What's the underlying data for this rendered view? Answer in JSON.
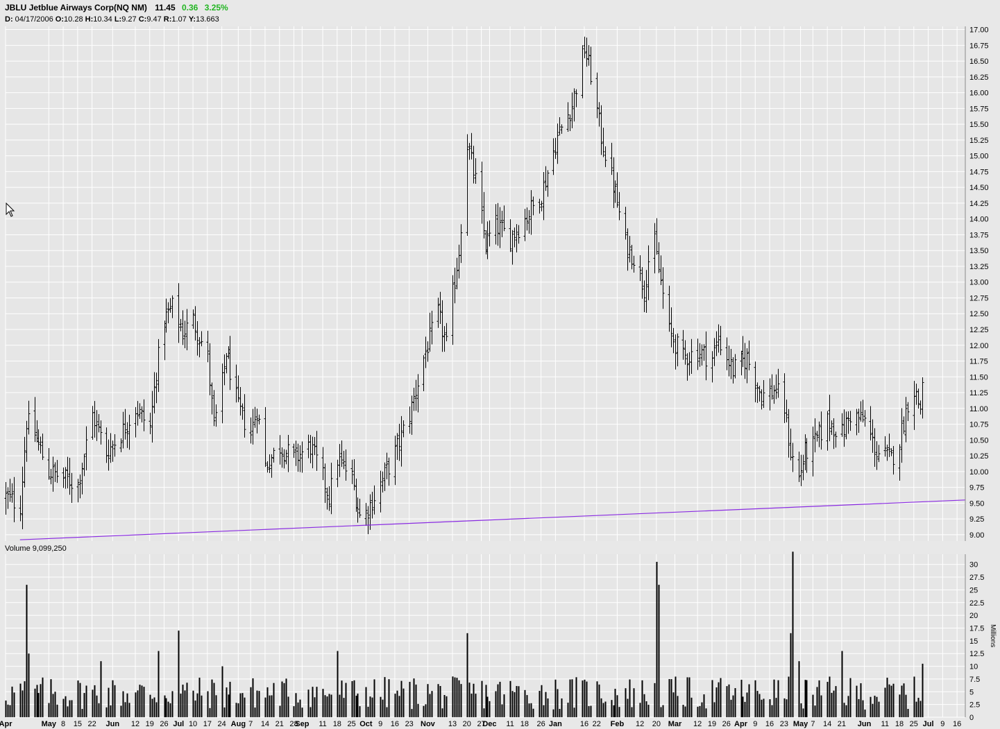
{
  "header": {
    "ticker": "JBLU",
    "name": "Jetblue Airways Corp(NQ NM)",
    "last": "11.45",
    "change": "0.36",
    "change_pct": "3.25%",
    "change_color": "#22b522",
    "detail": {
      "date_label": "D:",
      "date": "04/17/2006",
      "open_label": "O:",
      "open": "10.28",
      "high_label": "H:",
      "high": "10.34",
      "low_label": "L:",
      "low": "9.27",
      "close_label": "C:",
      "close": "9.47",
      "range_label": "R:",
      "range": "1.07",
      "y_label": "Y:",
      "y": "13.663"
    }
  },
  "volume_label": "Volume 9,099,250",
  "volume_axis_unit": "Millions",
  "chart_data": [
    {
      "type": "ohlc",
      "y_ticks": [
        "9.00",
        "9.25",
        "9.50",
        "9.75",
        "10.00",
        "10.25",
        "10.50",
        "10.75",
        "11.00",
        "11.25",
        "11.50",
        "11.75",
        "12.00",
        "12.25",
        "12.50",
        "12.75",
        "13.00",
        "13.25",
        "13.50",
        "13.75",
        "14.00",
        "14.25",
        "14.50",
        "14.75",
        "15.00",
        "15.25",
        "15.50",
        "15.75",
        "16.00",
        "16.25",
        "16.50",
        "16.75",
        "17.00"
      ],
      "ylim": [
        8.9,
        17.05
      ],
      "x_range": [
        "2006-04-10",
        "2007-07-20"
      ],
      "x_tick_labels": [
        {
          "date": "2006-04-10",
          "label": "Apr"
        },
        {
          "date": "2006-05-01",
          "label": "May"
        },
        {
          "date": "2006-05-08",
          "label": "8"
        },
        {
          "date": "2006-05-15",
          "label": "15"
        },
        {
          "date": "2006-05-22",
          "label": "22"
        },
        {
          "date": "2006-06-01",
          "label": "Jun"
        },
        {
          "date": "2006-06-12",
          "label": "12"
        },
        {
          "date": "2006-06-19",
          "label": "19"
        },
        {
          "date": "2006-06-26",
          "label": "26"
        },
        {
          "date": "2006-07-03",
          "label": "Jul"
        },
        {
          "date": "2006-07-10",
          "label": "10"
        },
        {
          "date": "2006-07-17",
          "label": "17"
        },
        {
          "date": "2006-07-24",
          "label": "24"
        },
        {
          "date": "2006-08-01",
          "label": "Aug"
        },
        {
          "date": "2006-08-07",
          "label": "7"
        },
        {
          "date": "2006-08-14",
          "label": "14"
        },
        {
          "date": "2006-08-21",
          "label": "21"
        },
        {
          "date": "2006-08-28",
          "label": "28"
        },
        {
          "date": "2006-09-01",
          "label": "Sep"
        },
        {
          "date": "2006-09-11",
          "label": "11"
        },
        {
          "date": "2006-09-18",
          "label": "18"
        },
        {
          "date": "2006-09-25",
          "label": "25"
        },
        {
          "date": "2006-10-02",
          "label": "Oct"
        },
        {
          "date": "2006-10-09",
          "label": "9"
        },
        {
          "date": "2006-10-16",
          "label": "16"
        },
        {
          "date": "2006-10-23",
          "label": "23"
        },
        {
          "date": "2006-11-01",
          "label": "Nov"
        },
        {
          "date": "2006-11-13",
          "label": "13"
        },
        {
          "date": "2006-11-20",
          "label": "20"
        },
        {
          "date": "2006-11-27",
          "label": "27"
        },
        {
          "date": "2006-12-01",
          "label": "Dec"
        },
        {
          "date": "2006-12-11",
          "label": "11"
        },
        {
          "date": "2006-12-18",
          "label": "18"
        },
        {
          "date": "2006-12-26",
          "label": "26"
        },
        {
          "date": "2007-01-02",
          "label": "Jan"
        },
        {
          "date": "2007-01-16",
          "label": "16"
        },
        {
          "date": "2007-01-22",
          "label": "22"
        },
        {
          "date": "2007-02-01",
          "label": "Feb"
        },
        {
          "date": "2007-02-12",
          "label": "12"
        },
        {
          "date": "2007-02-20",
          "label": "20"
        },
        {
          "date": "2007-03-01",
          "label": "Mar"
        },
        {
          "date": "2007-03-12",
          "label": "12"
        },
        {
          "date": "2007-03-19",
          "label": "19"
        },
        {
          "date": "2007-03-26",
          "label": "26"
        },
        {
          "date": "2007-04-02",
          "label": "Apr"
        },
        {
          "date": "2007-04-09",
          "label": "9"
        },
        {
          "date": "2007-04-16",
          "label": "16"
        },
        {
          "date": "2007-04-23",
          "label": "23"
        },
        {
          "date": "2007-05-01",
          "label": "May"
        },
        {
          "date": "2007-05-07",
          "label": "7"
        },
        {
          "date": "2007-05-14",
          "label": "14"
        },
        {
          "date": "2007-05-21",
          "label": "21"
        },
        {
          "date": "2007-06-01",
          "label": "Jun"
        },
        {
          "date": "2007-06-11",
          "label": "11"
        },
        {
          "date": "2007-06-18",
          "label": "18"
        },
        {
          "date": "2007-06-25",
          "label": "25"
        },
        {
          "date": "2007-07-02",
          "label": "Jul"
        },
        {
          "date": "2007-07-09",
          "label": "9"
        },
        {
          "date": "2007-07-16",
          "label": "16"
        }
      ],
      "price_anchors": [
        {
          "date": "2006-04-10",
          "close": 9.6
        },
        {
          "date": "2006-04-17",
          "close": 9.47
        },
        {
          "date": "2006-04-20",
          "close": 10.8
        },
        {
          "date": "2006-04-24",
          "close": 10.6
        },
        {
          "date": "2006-05-01",
          "close": 10.0
        },
        {
          "date": "2006-05-08",
          "close": 9.9
        },
        {
          "date": "2006-05-15",
          "close": 9.8
        },
        {
          "date": "2006-05-22",
          "close": 10.9
        },
        {
          "date": "2006-05-29",
          "close": 10.3
        },
        {
          "date": "2006-06-05",
          "close": 10.6
        },
        {
          "date": "2006-06-12",
          "close": 11.0
        },
        {
          "date": "2006-06-19",
          "close": 10.7
        },
        {
          "date": "2006-06-22",
          "close": 11.6
        },
        {
          "date": "2006-06-26",
          "close": 12.4
        },
        {
          "date": "2006-06-30",
          "close": 12.6
        },
        {
          "date": "2006-07-05",
          "close": 12.2
        },
        {
          "date": "2006-07-10",
          "close": 12.4
        },
        {
          "date": "2006-07-17",
          "close": 11.8
        },
        {
          "date": "2006-07-20",
          "close": 10.7
        },
        {
          "date": "2006-07-24",
          "close": 11.4
        },
        {
          "date": "2006-07-26",
          "close": 11.9
        },
        {
          "date": "2006-08-01",
          "close": 11.0
        },
        {
          "date": "2006-08-07",
          "close": 10.6
        },
        {
          "date": "2006-08-10",
          "close": 11.0
        },
        {
          "date": "2006-08-14",
          "close": 10.1
        },
        {
          "date": "2006-08-21",
          "close": 10.4
        },
        {
          "date": "2006-08-28",
          "close": 10.2
        },
        {
          "date": "2006-09-05",
          "close": 10.4
        },
        {
          "date": "2006-09-11",
          "close": 9.9
        },
        {
          "date": "2006-09-14",
          "close": 9.6
        },
        {
          "date": "2006-09-18",
          "close": 10.2
        },
        {
          "date": "2006-09-25",
          "close": 9.9
        },
        {
          "date": "2006-09-29",
          "close": 9.3
        },
        {
          "date": "2006-10-02",
          "close": 9.35
        },
        {
          "date": "2006-10-09",
          "close": 9.8
        },
        {
          "date": "2006-10-16",
          "close": 10.3
        },
        {
          "date": "2006-10-23",
          "close": 10.9
        },
        {
          "date": "2006-10-30",
          "close": 11.8
        },
        {
          "date": "2006-11-06",
          "close": 12.5
        },
        {
          "date": "2006-11-10",
          "close": 12.0
        },
        {
          "date": "2006-11-13",
          "close": 12.8
        },
        {
          "date": "2006-11-16",
          "close": 13.5
        },
        {
          "date": "2006-11-20",
          "close": 15.2
        },
        {
          "date": "2006-11-24",
          "close": 14.6
        },
        {
          "date": "2006-11-29",
          "close": 13.6
        },
        {
          "date": "2006-12-04",
          "close": 13.9
        },
        {
          "date": "2006-12-11",
          "close": 13.7
        },
        {
          "date": "2006-12-18",
          "close": 14.0
        },
        {
          "date": "2006-12-26",
          "close": 14.4
        },
        {
          "date": "2007-01-03",
          "close": 15.3
        },
        {
          "date": "2007-01-10",
          "close": 15.8
        },
        {
          "date": "2007-01-16",
          "close": 16.7
        },
        {
          "date": "2007-01-19",
          "close": 16.3
        },
        {
          "date": "2007-01-24",
          "close": 15.3
        },
        {
          "date": "2007-01-31",
          "close": 14.4
        },
        {
          "date": "2007-02-05",
          "close": 13.6
        },
        {
          "date": "2007-02-09",
          "close": 13.4
        },
        {
          "date": "2007-02-14",
          "close": 12.9
        },
        {
          "date": "2007-02-18",
          "close": 13.8
        },
        {
          "date": "2007-02-22",
          "close": 13.0
        },
        {
          "date": "2007-02-26",
          "close": 12.2
        },
        {
          "date": "2007-03-05",
          "close": 11.8
        },
        {
          "date": "2007-03-12",
          "close": 11.9
        },
        {
          "date": "2007-03-19",
          "close": 11.8
        },
        {
          "date": "2007-03-22",
          "close": 12.1
        },
        {
          "date": "2007-03-29",
          "close": 11.6
        },
        {
          "date": "2007-04-05",
          "close": 11.8
        },
        {
          "date": "2007-04-12",
          "close": 11.2
        },
        {
          "date": "2007-04-19",
          "close": 11.3
        },
        {
          "date": "2007-04-23",
          "close": 11.0
        },
        {
          "date": "2007-04-26",
          "close": 10.3
        },
        {
          "date": "2007-04-30",
          "close": 9.9
        },
        {
          "date": "2007-05-03",
          "close": 10.3
        },
        {
          "date": "2007-05-07",
          "close": 10.4
        },
        {
          "date": "2007-05-14",
          "close": 10.8
        },
        {
          "date": "2007-05-21",
          "close": 10.6
        },
        {
          "date": "2007-05-25",
          "close": 10.9
        },
        {
          "date": "2007-06-01",
          "close": 10.8
        },
        {
          "date": "2007-06-07",
          "close": 10.3
        },
        {
          "date": "2007-06-14",
          "close": 10.2
        },
        {
          "date": "2007-06-18",
          "close": 10.5
        },
        {
          "date": "2007-06-22",
          "close": 11.1
        },
        {
          "date": "2007-06-25",
          "close": 11.3
        },
        {
          "date": "2007-06-28",
          "close": 11.0
        },
        {
          "date": "2007-06-29",
          "close": 11.45
        }
      ],
      "trendline": {
        "from": {
          "date": "2006-04-17",
          "value": 8.92
        },
        "to": {
          "date": "2007-07-20",
          "value": 9.55
        },
        "color": "#8a2be2"
      }
    },
    {
      "type": "bar",
      "name": "Volume",
      "y_ticks": [
        "0",
        "2.5",
        "5",
        "7.5",
        "10",
        "12.5",
        "15",
        "17.5",
        "20",
        "22.5",
        "25",
        "27.5",
        "30"
      ],
      "ylim": [
        0,
        32
      ],
      "spikes": [
        {
          "date": "2006-04-20",
          "value": 26.0
        },
        {
          "date": "2006-04-21",
          "value": 12.5
        },
        {
          "date": "2006-05-26",
          "value": 11.0
        },
        {
          "date": "2006-06-23",
          "value": 13.0
        },
        {
          "date": "2006-07-03",
          "value": 17.0
        },
        {
          "date": "2006-07-24",
          "value": 10.0
        },
        {
          "date": "2006-09-18",
          "value": 13.0
        },
        {
          "date": "2006-11-20",
          "value": 16.5
        },
        {
          "date": "2007-02-20",
          "value": 30.5
        },
        {
          "date": "2007-02-21",
          "value": 26.0
        },
        {
          "date": "2007-04-26",
          "value": 16.5
        },
        {
          "date": "2007-04-27",
          "value": 32.5
        },
        {
          "date": "2007-04-30",
          "value": 11.0
        },
        {
          "date": "2007-05-21",
          "value": 13.0
        },
        {
          "date": "2007-06-29",
          "value": 10.5
        }
      ]
    }
  ]
}
